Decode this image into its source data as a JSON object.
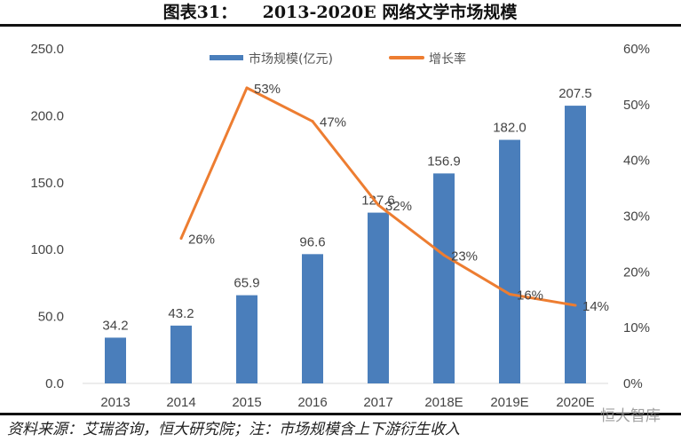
{
  "chart_data": {
    "type": "bar+line",
    "title": "图表31：　　2013-2020E 网络文学市场规模",
    "categories": [
      "2013",
      "2014",
      "2015",
      "2016",
      "2017",
      "2018E",
      "2019E",
      "2020E"
    ],
    "series": [
      {
        "name": "市场规模(亿元)",
        "type": "bar",
        "axis": "left",
        "color": "#4a7ebb",
        "values": [
          34.2,
          43.2,
          65.9,
          96.6,
          127.6,
          156.9,
          182.0,
          207.5
        ],
        "labels": [
          "34.2",
          "43.2",
          "65.9",
          "96.6",
          "127.6",
          "156.9",
          "182.0",
          "207.5"
        ]
      },
      {
        "name": "增长率",
        "type": "line",
        "axis": "right",
        "color": "#ed7d31",
        "values": [
          null,
          26,
          53,
          47,
          32,
          23,
          16,
          14
        ],
        "labels": [
          "",
          "26%",
          "53%",
          "47%",
          "32%",
          "23%",
          "16%",
          "14%"
        ]
      }
    ],
    "left_axis": {
      "ylim": [
        0,
        250
      ],
      "ticks": [
        "0.0",
        "50.0",
        "100.0",
        "150.0",
        "200.0",
        "250.0"
      ]
    },
    "right_axis": {
      "ylim": [
        0,
        60
      ],
      "ticks": [
        "0%",
        "10%",
        "20%",
        "30%",
        "40%",
        "50%",
        "60%"
      ]
    },
    "legend": "top-center",
    "grid": false
  },
  "footer": {
    "source": "资料来源：艾瑞咨询，恒大研究院；注：市场规模含上下游衍生收入",
    "watermark": "恒大智库"
  }
}
